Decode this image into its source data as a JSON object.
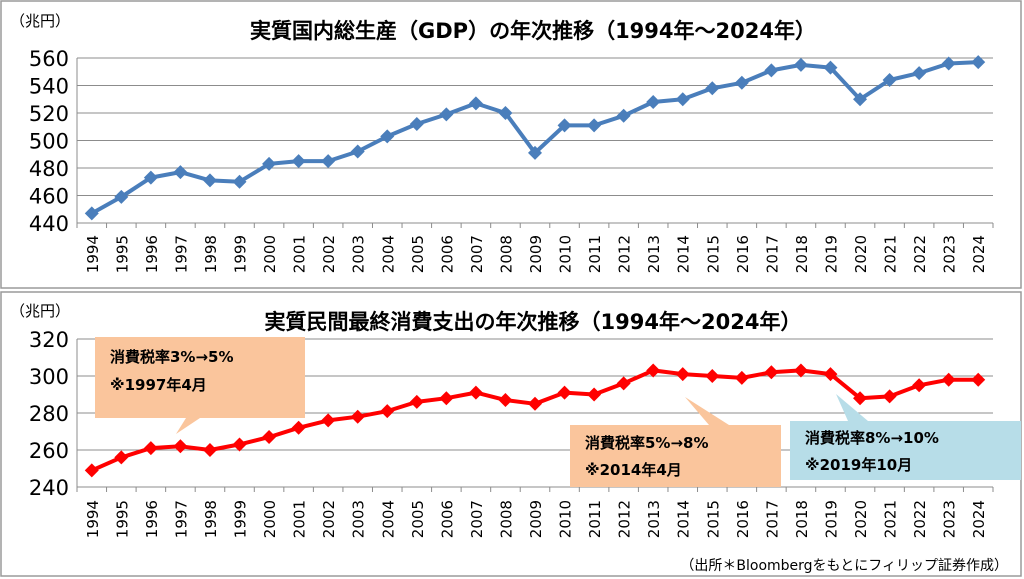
{
  "chart_data": [
    {
      "type": "line",
      "title": "実質国内総生産（GDP）の年次推移（1994年～2024年）",
      "ylabel": "（兆円）",
      "ylim": [
        440,
        560
      ],
      "yticks": [
        440,
        460,
        480,
        500,
        520,
        540,
        560
      ],
      "grid": true,
      "x": [
        "1994",
        "1995",
        "1996",
        "1997",
        "1998",
        "1999",
        "2000",
        "2001",
        "2002",
        "2003",
        "2004",
        "2005",
        "2006",
        "2007",
        "2008",
        "2009",
        "2010",
        "2011",
        "2012",
        "2013",
        "2014",
        "2015",
        "2016",
        "2017",
        "2018",
        "2019",
        "2020",
        "2021",
        "2022",
        "2023",
        "2024"
      ],
      "values": [
        447,
        459,
        473,
        477,
        471,
        470,
        483,
        485,
        485,
        492,
        503,
        512,
        519,
        527,
        520,
        491,
        511,
        511,
        518,
        528,
        530,
        538,
        542,
        551,
        555,
        553,
        530,
        544,
        549,
        556,
        557
      ],
      "colors": {
        "line": "#4a7ebb"
      }
    },
    {
      "type": "line",
      "title": "実質民間最終消費支出の年次推移（1994年～2024年）",
      "ylabel": "（兆円）",
      "ylim": [
        240,
        320
      ],
      "yticks": [
        240,
        260,
        280,
        300,
        320
      ],
      "grid": true,
      "x": [
        "1994",
        "1995",
        "1996",
        "1997",
        "1998",
        "1999",
        "2000",
        "2001",
        "2002",
        "2003",
        "2004",
        "2005",
        "2006",
        "2007",
        "2008",
        "2009",
        "2010",
        "2011",
        "2012",
        "2013",
        "2014",
        "2015",
        "2016",
        "2017",
        "2018",
        "2019",
        "2020",
        "2021",
        "2022",
        "2023",
        "2024"
      ],
      "values": [
        249,
        256,
        261,
        262,
        260,
        263,
        267,
        272,
        276,
        278,
        281,
        286,
        288,
        291,
        287,
        285,
        291,
        290,
        296,
        303,
        301,
        300,
        299,
        302,
        303,
        301,
        288,
        289,
        295,
        298,
        298
      ],
      "colors": {
        "line": "#ff0000"
      },
      "annotations": [
        {
          "line1": "消費税率3%→5%",
          "line2": "※1997年4月",
          "color": "#fac59c"
        },
        {
          "line1": "消費税率5%→8%",
          "line2": "※2014年4月",
          "color": "#fac59c"
        },
        {
          "line1": "消費税率8%→10%",
          "line2": "※2019年10月",
          "color": "#b7dde8"
        }
      ]
    }
  ],
  "source_note": "（出所＊Bloombergをもとにフィリップ証券作成）"
}
